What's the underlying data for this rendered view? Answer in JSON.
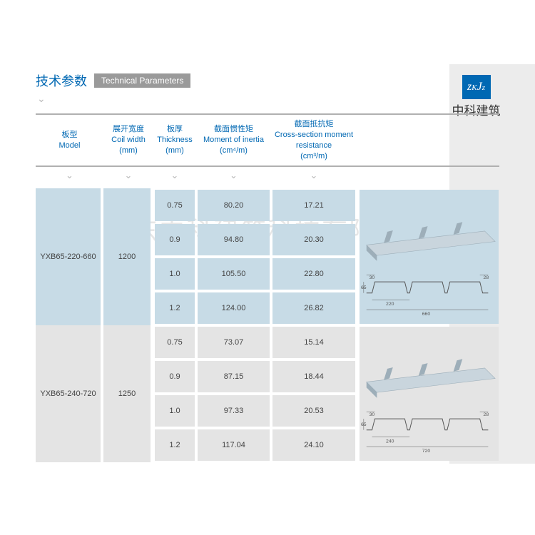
{
  "header": {
    "title_cn": "技术参数",
    "title_en": "Technical Parameters"
  },
  "logo": {
    "mark_top": "z氵z",
    "mark_bottom": "",
    "company": "中科建筑"
  },
  "watermark": "广东中科建筑科技有限公司",
  "columns": [
    {
      "cn": "板型",
      "en": "Model",
      "unit": ""
    },
    {
      "cn": "展开宽度",
      "en": "Coil width",
      "unit": "(mm)"
    },
    {
      "cn": "板厚",
      "en": "Thickness",
      "unit": "(mm)"
    },
    {
      "cn": "截面惯性矩",
      "en": "Moment of inertia",
      "unit": "(cm⁴/m)"
    },
    {
      "cn": "截面抵抗矩",
      "en": "Cross-section moment resistance",
      "unit": "(cm³/m)"
    }
  ],
  "groups": [
    {
      "model": "YXB65-220-660",
      "coil_width": "1200",
      "bg": "bg-blue",
      "profile": {
        "span": "660",
        "pitch": "220",
        "height": "65",
        "lip_l": "30",
        "lip_r": "28"
      },
      "rows": [
        {
          "thickness": "0.75",
          "moment": "80.20",
          "cross": "17.21"
        },
        {
          "thickness": "0.9",
          "moment": "94.80",
          "cross": "20.30"
        },
        {
          "thickness": "1.0",
          "moment": "105.50",
          "cross": "22.80"
        },
        {
          "thickness": "1.2",
          "moment": "124.00",
          "cross": "26.82"
        }
      ]
    },
    {
      "model": "YXB65-240-720",
      "coil_width": "1250",
      "bg": "bg-grey",
      "profile": {
        "span": "720",
        "pitch": "240",
        "height": "65",
        "lip_l": "30",
        "lip_r": "28"
      },
      "rows": [
        {
          "thickness": "0.75",
          "moment": "73.07",
          "cross": "15.14"
        },
        {
          "thickness": "0.9",
          "moment": "87.15",
          "cross": "18.44"
        },
        {
          "thickness": "1.0",
          "moment": "97.33",
          "cross": "20.53"
        },
        {
          "thickness": "1.2",
          "moment": "117.04",
          "cross": "24.10"
        }
      ]
    }
  ],
  "colors": {
    "brand_blue": "#0068b3",
    "header_grey": "#9a9a9a",
    "cell_blue": "#c7dbe6",
    "cell_grey": "#e4e4e4",
    "steel_blue_light": "#c9d5dd",
    "steel_blue_shade": "#9daeb9"
  }
}
